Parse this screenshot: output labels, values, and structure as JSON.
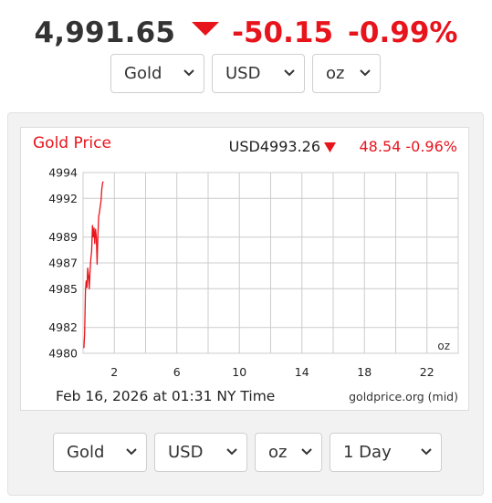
{
  "headline": {
    "price": "4,991.65",
    "change": "-50.15",
    "change_pct": "-0.99%"
  },
  "top_selects": {
    "metal": "Gold",
    "currency": "USD",
    "unit": "oz"
  },
  "chart": {
    "title": "Gold Price",
    "current_label": "USD4993.26",
    "change_label": "48.54 -0.96%",
    "unit_label": "oz",
    "timestamp": "Feb 16, 2026 at 01:31 NY Time",
    "source": "goldprice.org (mid)"
  },
  "bottom_selects": {
    "metal": "Gold",
    "currency": "USD",
    "unit": "oz",
    "range": "1 Day"
  },
  "colors": {
    "up_down_red": "#e8141c",
    "line": "#e8141c",
    "grid": "#cccccc"
  },
  "icons": {
    "dropdown": "chevron-down-icon",
    "trend": "triangle-down-icon"
  },
  "chart_data": {
    "type": "line",
    "title": "Gold Price",
    "xlabel": "",
    "ylabel": "",
    "xlim": [
      0,
      24
    ],
    "ylim": [
      4980,
      4994
    ],
    "x_ticks": [
      2,
      6,
      10,
      14,
      18,
      22
    ],
    "y_ticks": [
      4980,
      4982,
      4985,
      4987,
      4989,
      4992,
      4994
    ],
    "grid": true,
    "series": [
      {
        "x": [
          0.05,
          0.1,
          0.15,
          0.2,
          0.25,
          0.3,
          0.35,
          0.4,
          0.45,
          0.5,
          0.55,
          0.6,
          0.65,
          0.7,
          0.75,
          0.8,
          0.85,
          0.9,
          0.95,
          1.0,
          1.05,
          1.1,
          1.15,
          1.2,
          1.25,
          1.3
        ],
        "y": [
          4980.4,
          4981.5,
          4984.8,
          4985.6,
          4985.1,
          4986.6,
          4986.0,
          4985.0,
          4986.4,
          4987.4,
          4987.9,
          4989.9,
          4989.0,
          4989.7,
          4988.5,
          4989.6,
          4988.9,
          4986.9,
          4989.2,
          4990.6,
          4990.9,
          4991.4,
          4991.8,
          4992.7,
          4993.2,
          4993.3
        ]
      }
    ]
  }
}
